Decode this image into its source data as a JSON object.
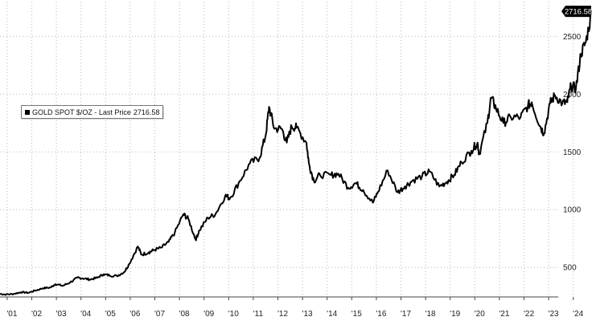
{
  "legend": {
    "series_label": "GOLD SPOT $/OZ - Last Price",
    "last_price": "2716.58"
  },
  "last_value_tag": "2716.58",
  "colors": {
    "line": "#000000",
    "grid": "#b8b8b8",
    "background": "#ffffff",
    "tag_bg": "#000000",
    "tag_text": "#ffffff"
  },
  "chart_data": {
    "type": "line",
    "title": "",
    "xlabel": "",
    "ylabel": "",
    "x_tick_labels": [
      "'01",
      "'02",
      "'03",
      "'04",
      "'05",
      "'06",
      "'07",
      "'08",
      "'09",
      "'10",
      "'11",
      "'12",
      "'13",
      "'14",
      "'15",
      "'16",
      "'17",
      "'18",
      "'19",
      "'20",
      "'21",
      "'22",
      "'23",
      "'24"
    ],
    "y_ticks": [
      500,
      1000,
      1500,
      2000,
      2500
    ],
    "ylim": [
      230,
      2760
    ],
    "xlim": [
      2000.75,
      2024.9
    ],
    "grid": true,
    "legend_position": "upper-left",
    "y_axis_side": "right",
    "series": [
      {
        "name": "GOLD SPOT $/OZ",
        "x": [
          2000.75,
          2001.0,
          2001.3,
          2001.6,
          2001.9,
          2002.2,
          2002.5,
          2002.8,
          2003.0,
          2003.3,
          2003.6,
          2003.9,
          2004.1,
          2004.4,
          2004.7,
          2004.95,
          2005.2,
          2005.5,
          2005.8,
          2006.0,
          2006.35,
          2006.5,
          2006.8,
          2007.0,
          2007.3,
          2007.6,
          2007.85,
          2008.2,
          2008.4,
          2008.7,
          2008.85,
          2009.2,
          2009.5,
          2009.9,
          2010.1,
          2010.5,
          2010.9,
          2011.3,
          2011.55,
          2011.68,
          2011.9,
          2012.2,
          2012.4,
          2012.6,
          2012.8,
          2013.2,
          2013.3,
          2013.5,
          2013.75,
          2014.2,
          2014.5,
          2014.9,
          2015.2,
          2015.5,
          2015.9,
          2016.1,
          2016.5,
          2016.9,
          2017.2,
          2017.5,
          2017.9,
          2018.2,
          2018.6,
          2018.9,
          2019.2,
          2019.5,
          2019.9,
          2020.15,
          2020.22,
          2020.55,
          2020.7,
          2020.9,
          2021.2,
          2021.5,
          2021.9,
          2022.2,
          2022.35,
          2022.7,
          2022.85,
          2023.1,
          2023.3,
          2023.6,
          2023.8,
          2023.95,
          2024.15,
          2024.35,
          2024.55,
          2024.8
        ],
        "y": [
          270,
          265,
          270,
          285,
          280,
          300,
          320,
          325,
          355,
          340,
          370,
          410,
          405,
          395,
          410,
          440,
          430,
          425,
          460,
          530,
          680,
          610,
          630,
          650,
          670,
          720,
          800,
          960,
          920,
          740,
          820,
          930,
          960,
          1120,
          1100,
          1250,
          1400,
          1450,
          1650,
          1890,
          1700,
          1700,
          1580,
          1720,
          1710,
          1580,
          1400,
          1250,
          1300,
          1300,
          1310,
          1190,
          1230,
          1170,
          1060,
          1150,
          1340,
          1150,
          1200,
          1250,
          1290,
          1330,
          1200,
          1240,
          1300,
          1410,
          1510,
          1580,
          1480,
          1750,
          1970,
          1880,
          1750,
          1800,
          1800,
          1900,
          1930,
          1720,
          1660,
          1920,
          1990,
          1920,
          1930,
          2070,
          2050,
          2350,
          2450,
          2716.58
        ]
      }
    ]
  }
}
